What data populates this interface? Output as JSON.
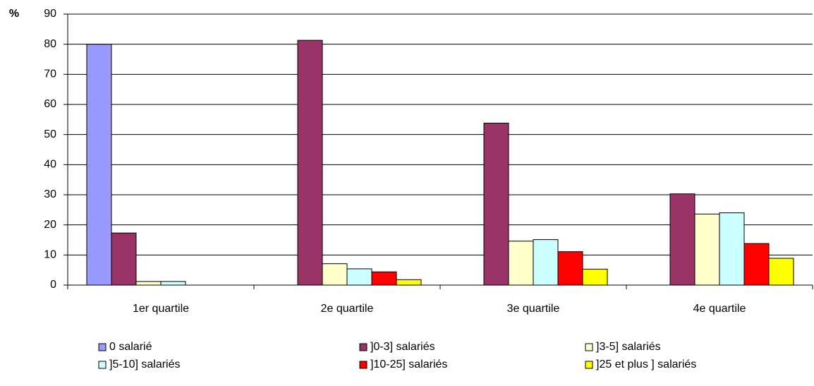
{
  "chart_data": {
    "type": "bar",
    "y_label": "%",
    "categories": [
      "1er quartile",
      "2e quartile",
      "3e quartile",
      "4e quartile"
    ],
    "series": [
      {
        "name": "0 salarié",
        "color": "#9999ff",
        "values": [
          80,
          0,
          0,
          0
        ]
      },
      {
        "name": "]0-3] salariés",
        "color": "#993366",
        "values": [
          17.3,
          81.3,
          53.8,
          30.3
        ]
      },
      {
        "name": "]3-5] salariés",
        "color": "#ffffcc",
        "values": [
          1.2,
          7.1,
          14.6,
          23.6
        ]
      },
      {
        "name": "]5-10] salariés",
        "color": "#ccffff",
        "values": [
          1.2,
          5.4,
          15.1,
          24.0
        ]
      },
      {
        "name": "]10-25] salariés",
        "color": "#ff0000",
        "values": [
          0,
          4.4,
          11.1,
          13.8
        ]
      },
      {
        "name": "]25 et plus ] salariés",
        "color": "#ffff00",
        "values": [
          0,
          1.8,
          5.3,
          8.9
        ]
      }
    ],
    "ylim": [
      0,
      90
    ],
    "yticks": [
      0,
      10,
      20,
      30,
      40,
      50,
      60,
      70,
      80,
      90
    ],
    "grid": true,
    "legend": "bottom"
  }
}
